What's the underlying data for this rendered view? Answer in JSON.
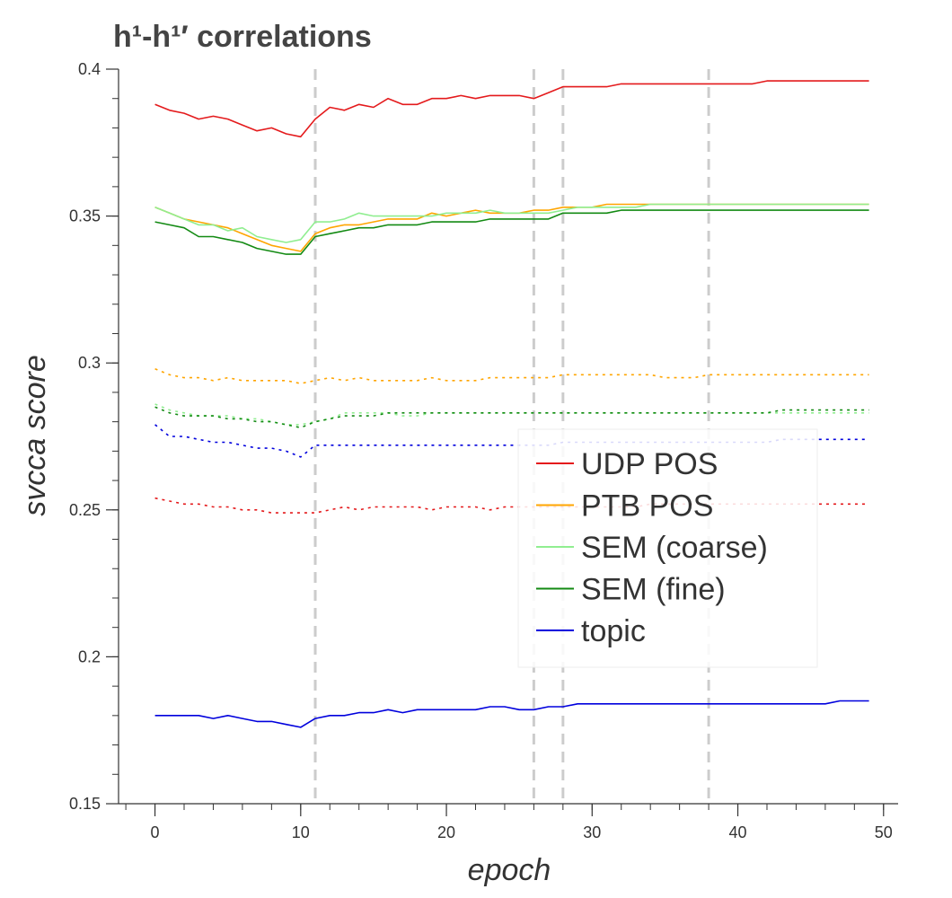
{
  "chart_data": {
    "type": "line",
    "title": "h¹-h¹′ correlations",
    "xlabel": "epoch",
    "ylabel": "svcca score",
    "xlim": [
      -2.5,
      51
    ],
    "ylim": [
      0.15,
      0.4
    ],
    "x_ticks": [
      0,
      10,
      20,
      30,
      40,
      50
    ],
    "x_tick_labels": [
      "0",
      "10",
      "20",
      "30",
      "40",
      "50"
    ],
    "y_ticks": [
      0.15,
      0.2,
      0.25,
      0.3,
      0.35,
      0.4
    ],
    "y_tick_labels": [
      "0.15",
      "0.2",
      "0.25",
      "0.3",
      "0.35",
      "0.4"
    ],
    "vlines": [
      11,
      26,
      28,
      38
    ],
    "legend_position": "center-right",
    "series": [
      {
        "name": "UDP POS",
        "color": "#e41a1c",
        "style": "solid",
        "values": [
          0.388,
          0.386,
          0.385,
          0.383,
          0.384,
          0.383,
          0.381,
          0.379,
          0.38,
          0.378,
          0.377,
          0.383,
          0.387,
          0.386,
          0.388,
          0.387,
          0.39,
          0.388,
          0.388,
          0.39,
          0.39,
          0.391,
          0.39,
          0.391,
          0.391,
          0.391,
          0.39,
          0.392,
          0.394,
          0.394,
          0.394,
          0.394,
          0.395,
          0.395,
          0.395,
          0.395,
          0.395,
          0.395,
          0.395,
          0.395,
          0.395,
          0.395,
          0.396,
          0.396,
          0.396,
          0.396,
          0.396,
          0.396,
          0.396,
          0.396
        ]
      },
      {
        "name": "PTB POS",
        "color": "#ffa500",
        "style": "solid",
        "values": [
          0.353,
          0.351,
          0.349,
          0.348,
          0.347,
          0.346,
          0.344,
          0.342,
          0.34,
          0.339,
          0.338,
          0.344,
          0.346,
          0.347,
          0.347,
          0.348,
          0.349,
          0.349,
          0.349,
          0.351,
          0.35,
          0.351,
          0.352,
          0.351,
          0.351,
          0.351,
          0.352,
          0.352,
          0.353,
          0.353,
          0.353,
          0.354,
          0.354,
          0.354,
          0.354,
          0.354,
          0.354,
          0.354,
          0.354,
          0.354,
          0.354,
          0.354,
          0.354,
          0.354,
          0.354,
          0.354,
          0.354,
          0.354,
          0.354,
          0.354
        ]
      },
      {
        "name": "SEM (coarse)",
        "color": "#90ee90",
        "style": "solid",
        "values": [
          0.353,
          0.351,
          0.349,
          0.347,
          0.347,
          0.345,
          0.346,
          0.343,
          0.342,
          0.341,
          0.342,
          0.348,
          0.348,
          0.349,
          0.351,
          0.35,
          0.35,
          0.35,
          0.35,
          0.35,
          0.351,
          0.351,
          0.351,
          0.352,
          0.351,
          0.351,
          0.351,
          0.351,
          0.352,
          0.353,
          0.353,
          0.353,
          0.353,
          0.353,
          0.354,
          0.354,
          0.354,
          0.354,
          0.354,
          0.354,
          0.354,
          0.354,
          0.354,
          0.354,
          0.354,
          0.354,
          0.354,
          0.354,
          0.354,
          0.354
        ]
      },
      {
        "name": "SEM (fine)",
        "color": "#138a13",
        "style": "solid",
        "values": [
          0.348,
          0.347,
          0.346,
          0.343,
          0.343,
          0.342,
          0.341,
          0.339,
          0.338,
          0.337,
          0.337,
          0.343,
          0.344,
          0.345,
          0.346,
          0.346,
          0.347,
          0.347,
          0.347,
          0.348,
          0.348,
          0.348,
          0.348,
          0.349,
          0.349,
          0.349,
          0.349,
          0.349,
          0.351,
          0.351,
          0.351,
          0.351,
          0.352,
          0.352,
          0.352,
          0.352,
          0.352,
          0.352,
          0.352,
          0.352,
          0.352,
          0.352,
          0.352,
          0.352,
          0.352,
          0.352,
          0.352,
          0.352,
          0.352,
          0.352
        ]
      },
      {
        "name": "topic",
        "color": "#0000dd",
        "style": "solid",
        "values": [
          0.18,
          0.18,
          0.18,
          0.18,
          0.179,
          0.18,
          0.179,
          0.178,
          0.178,
          0.177,
          0.176,
          0.179,
          0.18,
          0.18,
          0.181,
          0.181,
          0.182,
          0.181,
          0.182,
          0.182,
          0.182,
          0.182,
          0.182,
          0.183,
          0.183,
          0.182,
          0.182,
          0.183,
          0.183,
          0.184,
          0.184,
          0.184,
          0.184,
          0.184,
          0.184,
          0.184,
          0.184,
          0.184,
          0.184,
          0.184,
          0.184,
          0.184,
          0.184,
          0.184,
          0.184,
          0.184,
          0.184,
          0.185,
          0.185,
          0.185
        ]
      },
      {
        "color": "#ffa500",
        "style": "dotted",
        "values": [
          0.298,
          0.296,
          0.295,
          0.295,
          0.294,
          0.295,
          0.294,
          0.294,
          0.294,
          0.294,
          0.293,
          0.294,
          0.295,
          0.294,
          0.295,
          0.294,
          0.294,
          0.294,
          0.294,
          0.295,
          0.294,
          0.294,
          0.294,
          0.295,
          0.295,
          0.295,
          0.295,
          0.295,
          0.296,
          0.296,
          0.296,
          0.296,
          0.296,
          0.296,
          0.296,
          0.295,
          0.295,
          0.295,
          0.296,
          0.296,
          0.296,
          0.296,
          0.296,
          0.296,
          0.296,
          0.296,
          0.296,
          0.296,
          0.296,
          0.296
        ]
      },
      {
        "color": "#90ee90",
        "style": "dotted",
        "values": [
          0.286,
          0.284,
          0.283,
          0.282,
          0.282,
          0.282,
          0.281,
          0.281,
          0.28,
          0.279,
          0.279,
          0.28,
          0.281,
          0.283,
          0.283,
          0.283,
          0.283,
          0.282,
          0.282,
          0.283,
          0.283,
          0.283,
          0.283,
          0.283,
          0.283,
          0.283,
          0.283,
          0.283,
          0.283,
          0.283,
          0.283,
          0.283,
          0.283,
          0.283,
          0.283,
          0.283,
          0.283,
          0.283,
          0.283,
          0.283,
          0.283,
          0.283,
          0.283,
          0.283,
          0.283,
          0.283,
          0.283,
          0.283,
          0.283,
          0.283
        ]
      },
      {
        "color": "#138a13",
        "style": "dotted",
        "values": [
          0.285,
          0.283,
          0.282,
          0.282,
          0.282,
          0.281,
          0.281,
          0.28,
          0.28,
          0.279,
          0.278,
          0.28,
          0.281,
          0.282,
          0.282,
          0.282,
          0.283,
          0.283,
          0.283,
          0.283,
          0.283,
          0.283,
          0.283,
          0.283,
          0.283,
          0.283,
          0.283,
          0.283,
          0.283,
          0.283,
          0.283,
          0.283,
          0.283,
          0.283,
          0.283,
          0.283,
          0.283,
          0.283,
          0.283,
          0.283,
          0.283,
          0.283,
          0.283,
          0.284,
          0.284,
          0.284,
          0.284,
          0.284,
          0.284,
          0.284
        ]
      },
      {
        "color": "#0000dd",
        "style": "dotted",
        "values": [
          0.279,
          0.275,
          0.275,
          0.274,
          0.273,
          0.273,
          0.272,
          0.271,
          0.271,
          0.27,
          0.268,
          0.272,
          0.272,
          0.272,
          0.272,
          0.272,
          0.272,
          0.272,
          0.272,
          0.272,
          0.272,
          0.272,
          0.272,
          0.272,
          0.272,
          0.272,
          0.272,
          0.272,
          0.273,
          0.273,
          0.273,
          0.273,
          0.273,
          0.273,
          0.273,
          0.273,
          0.273,
          0.273,
          0.273,
          0.273,
          0.273,
          0.273,
          0.273,
          0.274,
          0.274,
          0.274,
          0.274,
          0.274,
          0.274,
          0.274
        ]
      },
      {
        "color": "#e41a1c",
        "style": "dotted",
        "values": [
          0.254,
          0.253,
          0.252,
          0.252,
          0.251,
          0.251,
          0.25,
          0.25,
          0.249,
          0.249,
          0.249,
          0.249,
          0.25,
          0.251,
          0.25,
          0.251,
          0.251,
          0.251,
          0.251,
          0.25,
          0.251,
          0.251,
          0.251,
          0.25,
          0.251,
          0.251,
          0.251,
          0.251,
          0.251,
          0.251,
          0.251,
          0.251,
          0.251,
          0.251,
          0.252,
          0.252,
          0.252,
          0.252,
          0.252,
          0.252,
          0.252,
          0.252,
          0.252,
          0.252,
          0.252,
          0.252,
          0.252,
          0.252,
          0.252,
          0.252
        ]
      }
    ]
  }
}
